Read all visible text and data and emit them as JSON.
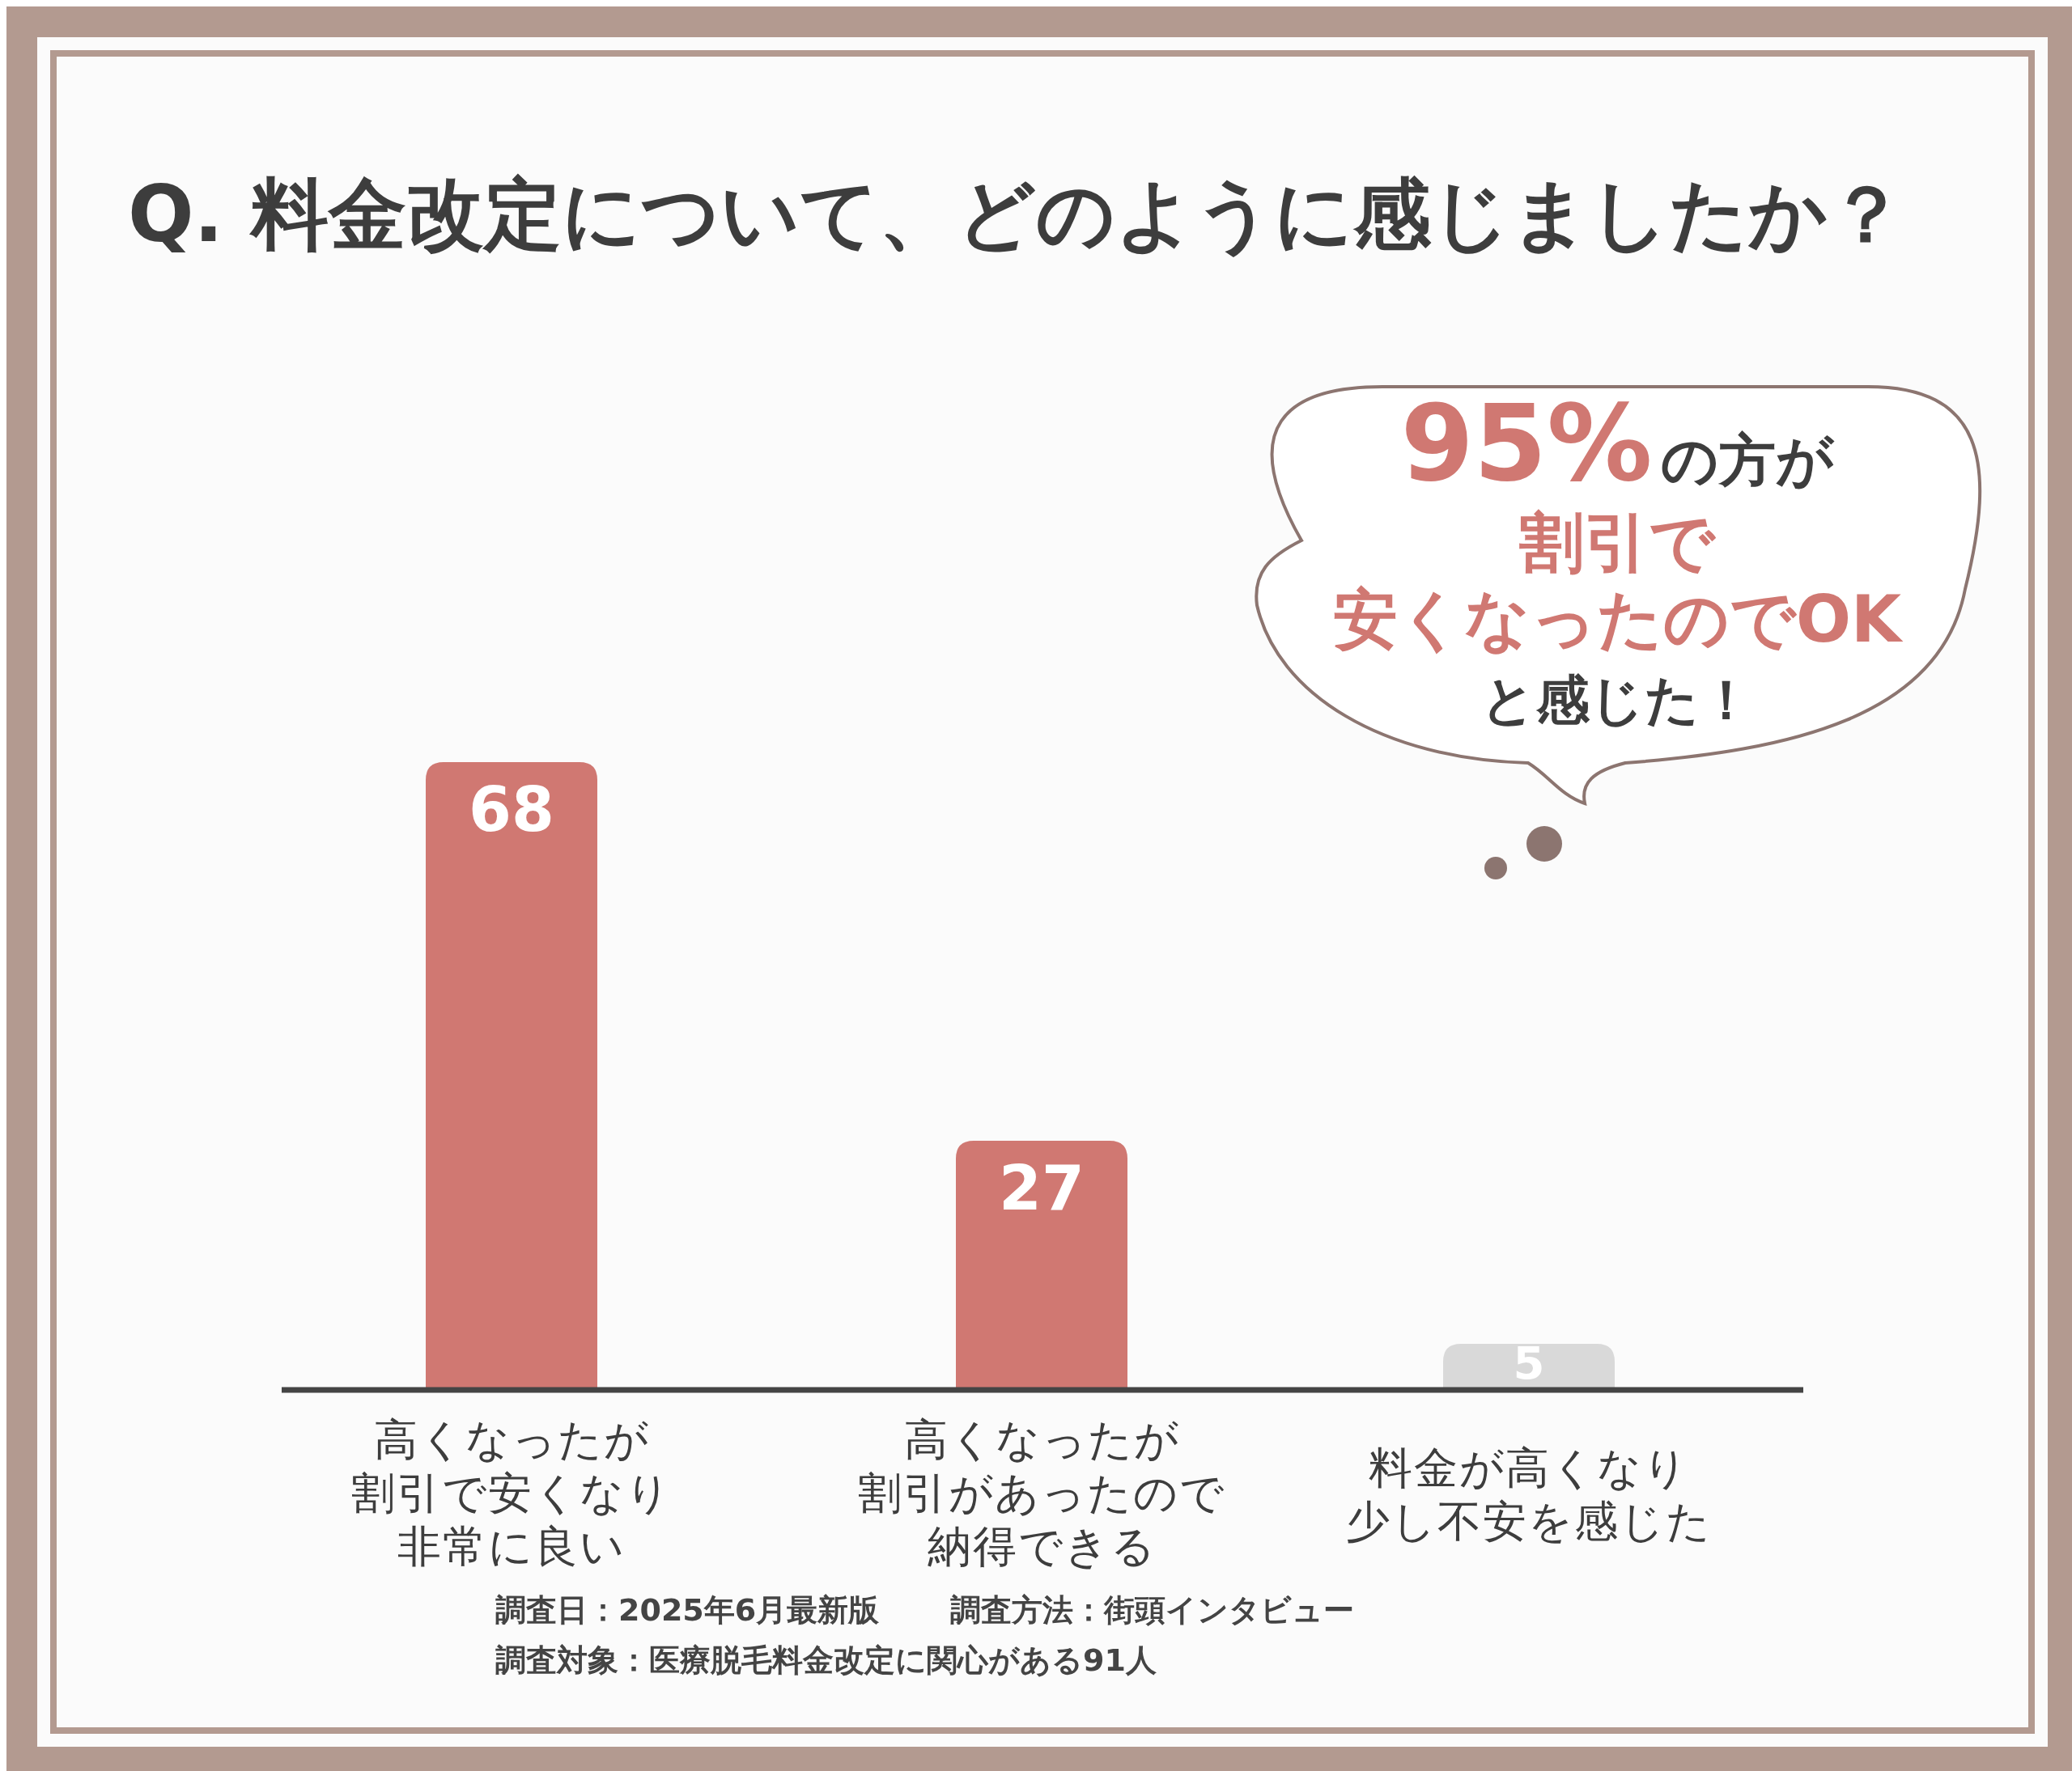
{
  "chart_data": {
    "type": "bar",
    "title": "Q. 料金改定について、どのように感じましたか？",
    "categories": [
      "高くなったが割引で安くなり非常に良い",
      "高くなったが割引があったので納得できる",
      "料金が高くなり少し不安を感じた"
    ],
    "values": [
      68,
      27,
      5
    ],
    "colors": [
      "#d07872",
      "#d07872",
      "#d9d9d9"
    ],
    "data_labels": true,
    "annotations": [
      "95%の方が割引で安くなったのでOKと感じた！",
      "調査日：2025年6月最新版",
      "調査方法：街頭インタビュー",
      "調査対象：医療脱毛料金改定に関心がある91人"
    ]
  }
}
